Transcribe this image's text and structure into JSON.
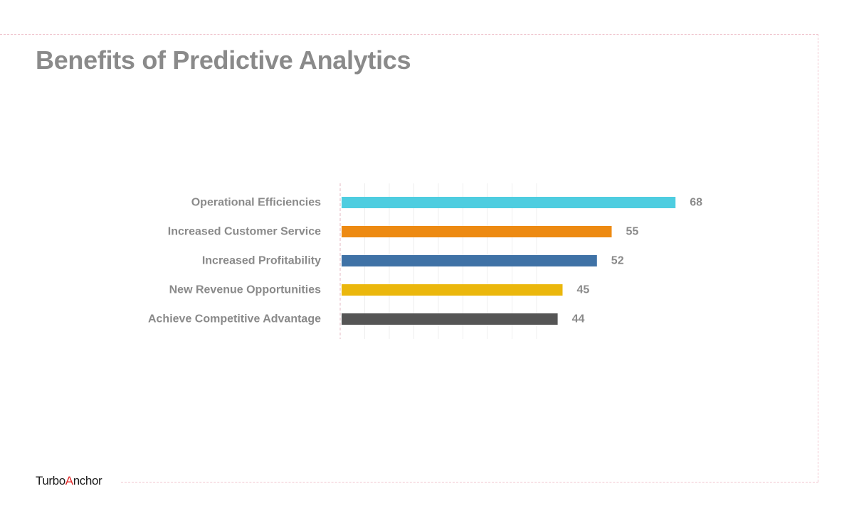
{
  "title": "Benefits of Predictive Analytics",
  "logo": {
    "part1": "Turbo",
    "accent_letter": "A",
    "part2": "nchor",
    "accent_color": "#e02a2a"
  },
  "chart_data": {
    "type": "bar",
    "orientation": "horizontal",
    "categories": [
      "Operational Efficiencies",
      "Increased Customer Service",
      "Increased Profitability",
      "New Revenue Opportunities",
      "Achieve Competitive Advantage"
    ],
    "values": [
      68,
      55,
      52,
      45,
      44
    ],
    "colors": [
      "#4ecde0",
      "#ed8a12",
      "#3f72a6",
      "#ebb70c",
      "#555555"
    ],
    "xlim": [
      0,
      70
    ],
    "grid": true,
    "legend": "none",
    "data_labels": true
  }
}
